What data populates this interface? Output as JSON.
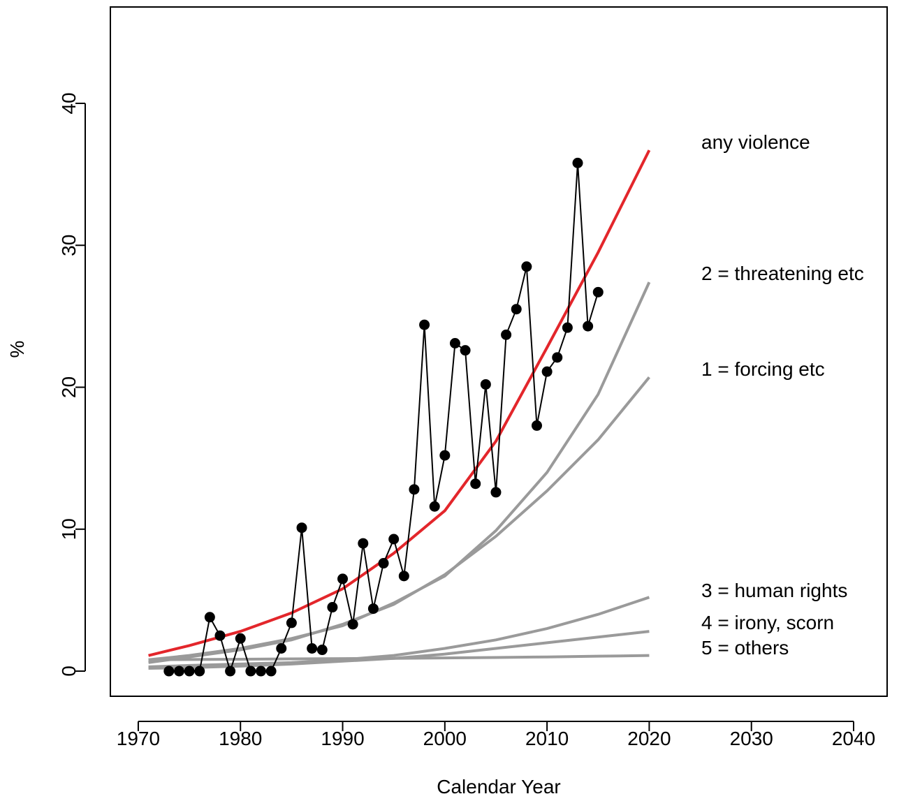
{
  "chart_data": {
    "type": "line",
    "x_label": "Calendar Year",
    "y_label": "%",
    "xlim": [
      1967.27,
      2043.28
    ],
    "ylim": [
      -1.77,
      46.79
    ],
    "xticks": [
      1970,
      1980,
      1990,
      2000,
      2010,
      2020,
      2030,
      2040
    ],
    "yticks": [
      0,
      10,
      20,
      30,
      40
    ],
    "points": {
      "color": "#000000",
      "x": [
        1973,
        1974,
        1975,
        1976,
        1977,
        1978,
        1979,
        1980,
        1981,
        1982,
        1983,
        1984,
        1985,
        1986,
        1987,
        1988,
        1989,
        1990,
        1991,
        1992,
        1993,
        1994,
        1995,
        1996,
        1997,
        1998,
        1999,
        2000,
        2001,
        2002,
        2003,
        2004,
        2005,
        2006,
        2007,
        2008,
        2009,
        2010,
        2011,
        2012,
        2013,
        2014,
        2015
      ],
      "values": [
        0,
        0,
        0,
        0,
        3.8,
        2.5,
        0,
        2.3,
        0,
        0,
        0,
        1.6,
        3.4,
        10.1,
        1.6,
        1.5,
        4.5,
        6.5,
        3.3,
        9.0,
        4.4,
        7.6,
        9.3,
        6.7,
        12.8,
        24.4,
        11.6,
        15.2,
        23.1,
        22.6,
        13.2,
        20.2,
        12.6,
        23.7,
        25.5,
        28.5,
        17.3,
        21.1,
        22.1,
        24.2,
        35.8,
        24.3,
        26.7
      ]
    },
    "curves": {
      "x": [
        1971,
        1975,
        1980,
        1985,
        1990,
        1995,
        2000,
        2005,
        2010,
        2015,
        2020
      ],
      "series": [
        {
          "name": "any violence",
          "color": "#e3262b",
          "values": [
            1.1,
            1.8,
            2.8,
            4.1,
            5.8,
            8.3,
            11.3,
            16.2,
            22.8,
            29.5,
            36.7
          ]
        },
        {
          "name": "2 = threatening etc",
          "color": "#9a9a9a",
          "values": [
            0.8,
            1.1,
            1.6,
            2.3,
            3.2,
            4.8,
            6.7,
            9.9,
            14.0,
            19.5,
            27.4
          ]
        },
        {
          "name": "1 = forcing etc",
          "color": "#9a9a9a",
          "values": [
            0.6,
            1.0,
            1.5,
            2.2,
            3.3,
            4.7,
            6.8,
            9.5,
            12.7,
            16.3,
            20.7
          ]
        },
        {
          "name": "3 = human rights",
          "color": "#9a9a9a",
          "values": [
            0.3,
            0.4,
            0.5,
            0.6,
            0.8,
            1.1,
            1.6,
            2.2,
            3.0,
            4.0,
            5.2
          ]
        },
        {
          "name": "4 = irony, scorn",
          "color": "#9a9a9a",
          "values": [
            0.2,
            0.25,
            0.35,
            0.5,
            0.7,
            0.9,
            1.2,
            1.6,
            2.0,
            2.4,
            2.8
          ]
        },
        {
          "name": "5 = others",
          "color": "#9a9a9a",
          "values": [
            0.8,
            0.82,
            0.84,
            0.86,
            0.88,
            0.9,
            0.93,
            0.96,
            1.0,
            1.05,
            1.1
          ]
        }
      ]
    }
  }
}
